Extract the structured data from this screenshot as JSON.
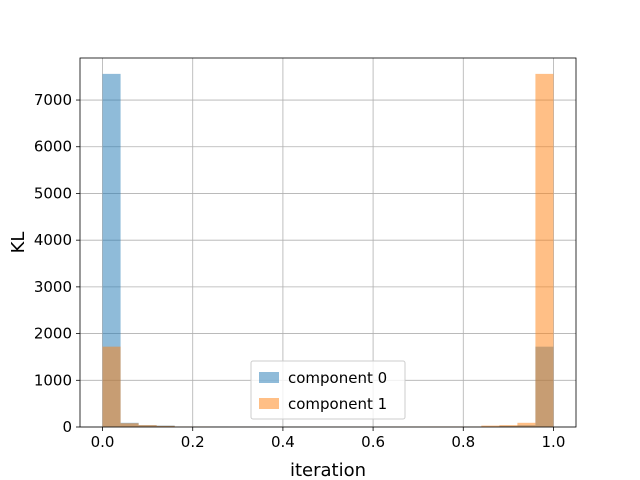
{
  "chart_data": {
    "type": "bar",
    "title": "",
    "xlabel": "iteration",
    "ylabel": "KL",
    "xlim": [
      -0.05,
      1.05
    ],
    "ylim": [
      0,
      7900
    ],
    "grid": true,
    "legend_position": "bottom-center",
    "bin_edges": [
      0.0,
      0.04,
      0.08,
      0.12,
      0.16,
      0.2,
      0.24,
      0.28,
      0.32,
      0.36,
      0.4,
      0.44,
      0.48,
      0.52,
      0.56,
      0.6,
      0.64,
      0.68,
      0.72,
      0.76,
      0.8,
      0.84,
      0.88,
      0.92,
      0.96,
      1.0
    ],
    "series": [
      {
        "name": "component 0",
        "color": "#1f77b4",
        "alpha": 0.5,
        "values": [
          7560,
          90,
          40,
          30,
          10,
          10,
          10,
          8,
          8,
          6,
          6,
          5,
          5,
          5,
          5,
          5,
          5,
          5,
          5,
          5,
          10,
          10,
          25,
          40,
          1720
        ]
      },
      {
        "name": "component 1",
        "color": "#ff7f0e",
        "alpha": 0.5,
        "values": [
          1720,
          80,
          40,
          25,
          10,
          10,
          5,
          5,
          5,
          5,
          5,
          5,
          5,
          5,
          6,
          6,
          8,
          8,
          10,
          10,
          10,
          30,
          40,
          90,
          7560
        ]
      }
    ],
    "x_ticks": [
      0.0,
      0.2,
      0.4,
      0.6,
      0.8,
      1.0
    ],
    "x_tick_labels": [
      "0.0",
      "0.2",
      "0.4",
      "0.6",
      "0.8",
      "1.0"
    ],
    "y_ticks": [
      0,
      1000,
      2000,
      3000,
      4000,
      5000,
      6000,
      7000
    ],
    "y_tick_labels": [
      "0",
      "1000",
      "2000",
      "3000",
      "4000",
      "5000",
      "6000",
      "7000"
    ]
  }
}
